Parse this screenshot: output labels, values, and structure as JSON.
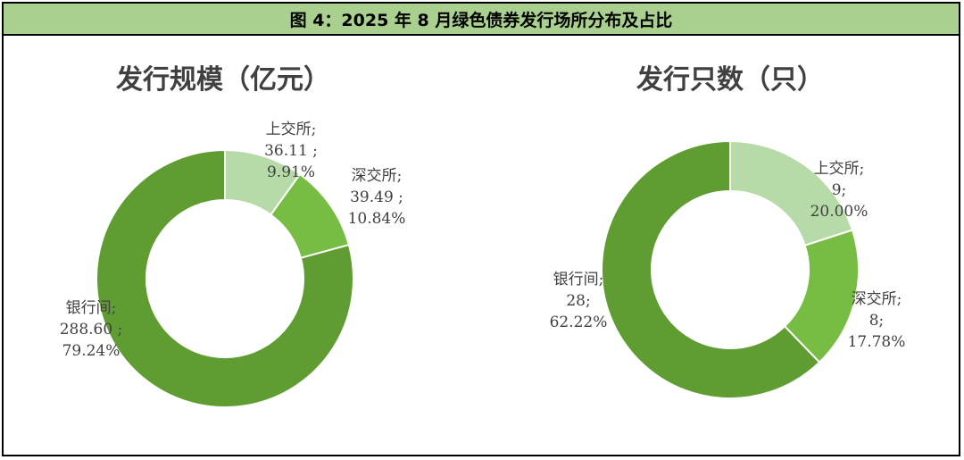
{
  "figure_title": "图 4：2025 年 8 月绿色债券发行场所分布及占比",
  "colors": {
    "title_bg": "#a9d08e",
    "上交所": "#b7dba8",
    "深交所": "#77bd44",
    "银行间": "#5f9d33"
  },
  "chart_data": [
    {
      "type": "pie",
      "donut": true,
      "title": "发行规模（亿元）",
      "slices": [
        {
          "name": "上交所",
          "value": 36.11,
          "percent": "9.91%",
          "value_label": "36.11 ;",
          "name_label": "上交所;"
        },
        {
          "name": "深交所",
          "value": 39.49,
          "percent": "10.84%",
          "value_label": "39.49 ;",
          "name_label": "深交所;"
        },
        {
          "name": "银行间",
          "value": 288.6,
          "percent": "79.24%",
          "value_label": "288.60 ;",
          "name_label": "银行间;"
        }
      ]
    },
    {
      "type": "pie",
      "donut": true,
      "title": "发行只数（只）",
      "slices": [
        {
          "name": "上交所",
          "value": 9,
          "percent": "20.00%",
          "value_label": "9;",
          "name_label": "上交所;"
        },
        {
          "name": "深交所",
          "value": 8,
          "percent": "17.78%",
          "value_label": "8;",
          "name_label": "深交所;"
        },
        {
          "name": "银行间",
          "value": 28,
          "percent": "62.22%",
          "value_label": "28;",
          "name_label": "银行间;"
        }
      ]
    }
  ]
}
